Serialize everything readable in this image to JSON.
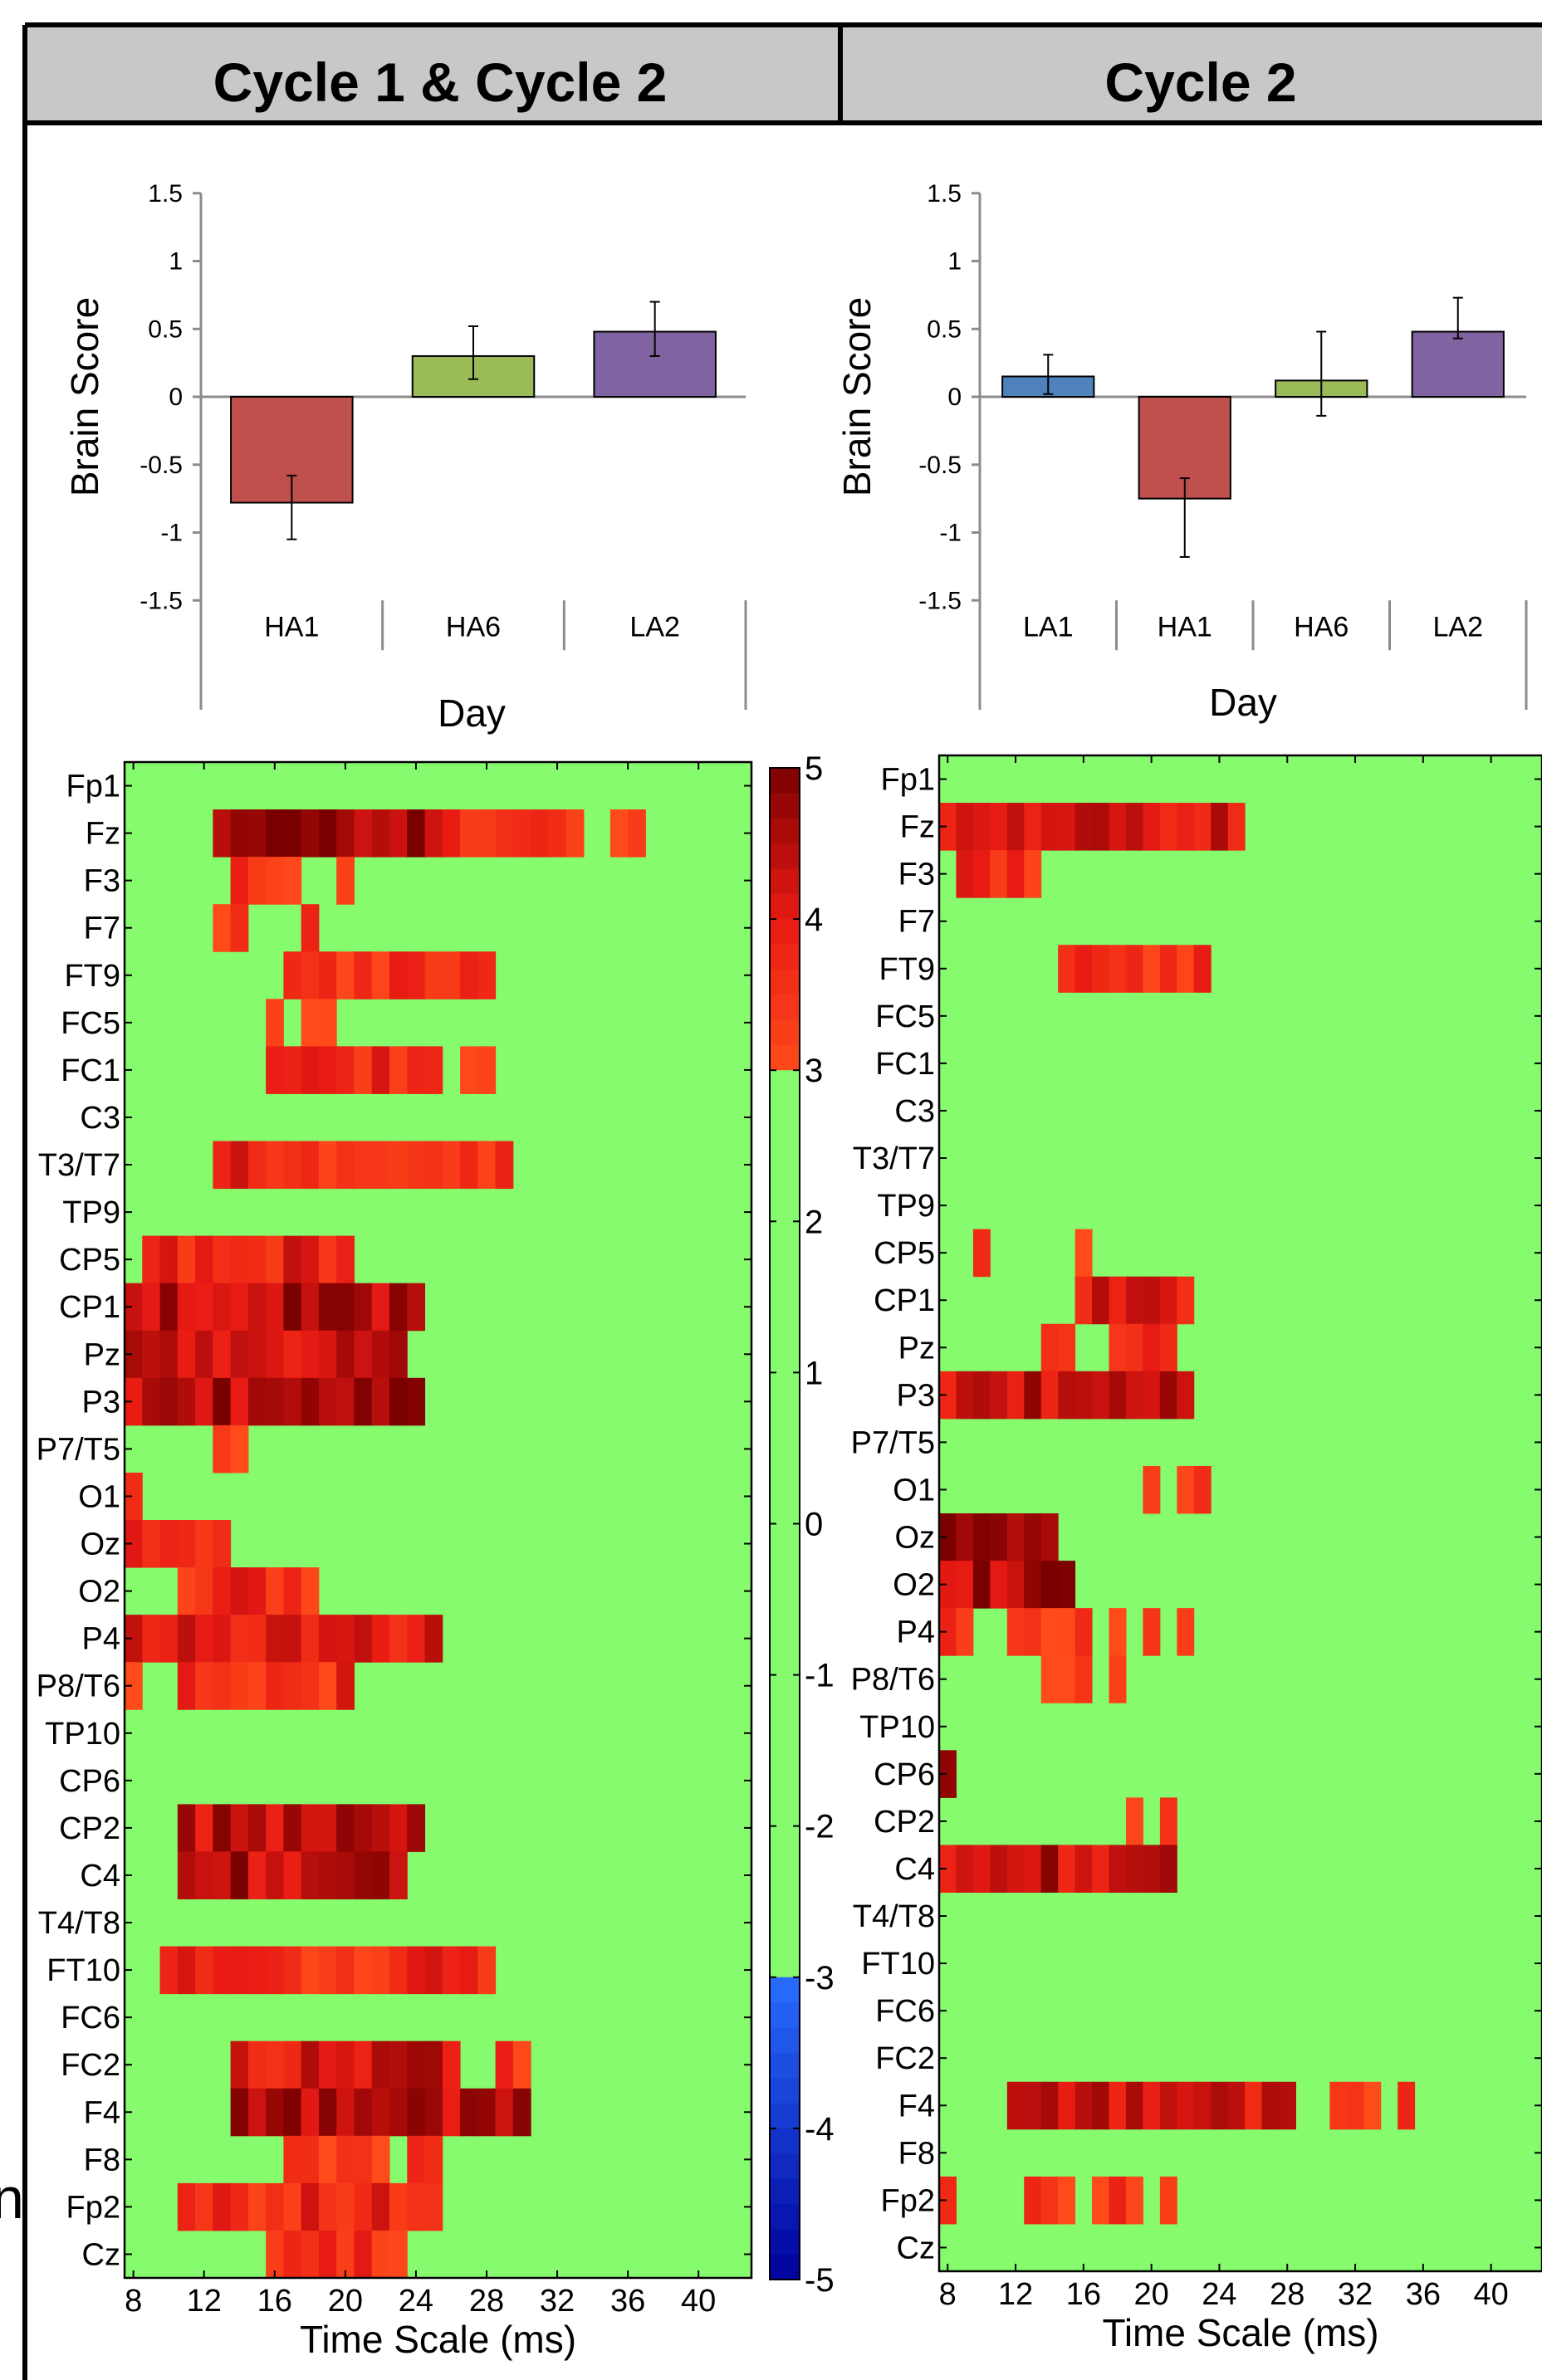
{
  "panels": [
    {
      "title": "Cycle 1 & Cycle 2"
    },
    {
      "title": "Cycle 2"
    }
  ],
  "edge_text": "n",
  "chart_data": [
    {
      "type": "bar",
      "panel": "Cycle 1 & Cycle 2",
      "xlabel": "Day",
      "ylabel": "Brain Score",
      "categories": [
        "HA1",
        "HA6",
        "LA2"
      ],
      "values": [
        -0.78,
        0.3,
        0.48
      ],
      "error_low": [
        -1.05,
        0.13,
        0.3
      ],
      "error_high": [
        -0.58,
        0.52,
        0.7
      ],
      "colors": [
        "#c0504d",
        "#9bbb59",
        "#8064a2"
      ],
      "ylim": [
        -1.5,
        1.5
      ],
      "yticks": [
        "1.5",
        "1",
        "0.5",
        "0",
        "-0.5",
        "-1",
        "-1.5"
      ]
    },
    {
      "type": "bar",
      "panel": "Cycle 2",
      "xlabel": "Day",
      "ylabel": "Brain Score",
      "categories": [
        "LA1",
        "HA1",
        "HA6",
        "LA2"
      ],
      "values": [
        0.15,
        -0.75,
        0.12,
        0.48
      ],
      "error_low": [
        0.02,
        -1.18,
        -0.14,
        0.43
      ],
      "error_high": [
        0.31,
        -0.6,
        0.48,
        0.73
      ],
      "colors": [
        "#4f81bd",
        "#c0504d",
        "#9bbb59",
        "#8064a2"
      ],
      "ylim": [
        -1.5,
        1.5
      ],
      "yticks": [
        "1.5",
        "1",
        "0.5",
        "0",
        "-0.5",
        "-1",
        "-1.5"
      ]
    },
    {
      "type": "heatmap",
      "panel": "Cycle 1 & Cycle 2",
      "xlabel": "Time Scale (ms)",
      "xticks": [
        "8",
        "12",
        "16",
        "20",
        "24",
        "28",
        "32",
        "36",
        "40"
      ],
      "xlim": [
        7.5,
        43
      ],
      "channels": [
        "Fp1",
        "Fz",
        "F3",
        "F7",
        "FT9",
        "FC5",
        "FC1",
        "C3",
        "T3/T7",
        "TP9",
        "CP5",
        "CP1",
        "Pz",
        "P3",
        "P7/T5",
        "O1",
        "Oz",
        "O2",
        "P4",
        "P8/T6",
        "TP10",
        "CP6",
        "CP2",
        "C4",
        "T4/T8",
        "FT10",
        "FC6",
        "FC2",
        "F4",
        "F8",
        "Fp2",
        "Cz"
      ],
      "segments": {
        "Fz": [
          [
            12.5,
            25.5,
            4.7
          ],
          [
            25.5,
            29.5,
            3.7
          ],
          [
            29.5,
            33.5,
            3.5
          ],
          [
            35,
            37,
            3.3
          ]
        ],
        "F3": [
          [
            13.5,
            17.5,
            3.5
          ],
          [
            19.5,
            20.5,
            3.3
          ]
        ],
        "F7": [
          [
            12.5,
            14.5,
            3.3
          ],
          [
            17.5,
            18.5,
            3.3
          ]
        ],
        "FT9": [
          [
            16.5,
            28.5,
            3.6
          ]
        ],
        "FC5": [
          [
            15.5,
            16.5,
            3.3
          ],
          [
            17.5,
            19.5,
            3.3
          ]
        ],
        "FC1": [
          [
            15.5,
            25.5,
            3.6
          ],
          [
            26.5,
            28.5,
            3.3
          ]
        ],
        "T3/T7": [
          [
            12.5,
            29.5,
            3.7
          ]
        ],
        "CP5": [
          [
            8.5,
            20.5,
            3.8
          ]
        ],
        "CP1": [
          [
            7.5,
            24.5,
            4.5
          ]
        ],
        "Pz": [
          [
            7.5,
            23.5,
            4.2
          ]
        ],
        "P3": [
          [
            7.5,
            24.5,
            4.5
          ]
        ],
        "P7/T5": [
          [
            12.5,
            14.5,
            3.3
          ]
        ],
        "O1": [
          [
            7.5,
            8.5,
            3.3
          ]
        ],
        "Oz": [
          [
            7.5,
            13.5,
            3.6
          ]
        ],
        "O2": [
          [
            10.5,
            18.5,
            3.6
          ]
        ],
        "P4": [
          [
            7.5,
            25.5,
            4.0
          ]
        ],
        "P8/T6": [
          [
            7.5,
            8.5,
            3.3
          ],
          [
            10.5,
            20.5,
            3.6
          ]
        ],
        "CP2": [
          [
            10.5,
            24.5,
            4.4
          ]
        ],
        "C4": [
          [
            10.5,
            23.5,
            4.4
          ]
        ],
        "FT10": [
          [
            9.5,
            28.5,
            3.6
          ]
        ],
        "FC2": [
          [
            13.5,
            26.5,
            4.1
          ],
          [
            28.5,
            30.5,
            3.4
          ]
        ],
        "F4": [
          [
            13.5,
            30.5,
            4.4
          ]
        ],
        "F8": [
          [
            16.5,
            22.5,
            3.5
          ],
          [
            23.5,
            25.5,
            3.3
          ]
        ],
        "Fp2": [
          [
            10.5,
            25.5,
            3.7
          ]
        ],
        "Cz": [
          [
            15.5,
            23.5,
            3.5
          ]
        ]
      }
    },
    {
      "type": "heatmap",
      "panel": "Cycle 2",
      "xlabel": "Time Scale (ms)",
      "xticks": [
        "8",
        "12",
        "16",
        "20",
        "24",
        "28",
        "32",
        "36",
        "40"
      ],
      "xlim": [
        7.5,
        43
      ],
      "channels": [
        "Fp1",
        "Fz",
        "F3",
        "F7",
        "FT9",
        "FC5",
        "FC1",
        "C3",
        "T3/T7",
        "TP9",
        "CP5",
        "CP1",
        "Pz",
        "P3",
        "P7/T5",
        "O1",
        "Oz",
        "O2",
        "P4",
        "P8/T6",
        "TP10",
        "CP6",
        "CP2",
        "C4",
        "T4/T8",
        "FT10",
        "FC6",
        "FC2",
        "F4",
        "F8",
        "Fp2",
        "Cz"
      ],
      "segments": {
        "Fz": [
          [
            7.5,
            25.5,
            4.1
          ]
        ],
        "F3": [
          [
            8.5,
            13.5,
            3.6
          ]
        ],
        "FT9": [
          [
            14.5,
            23.5,
            3.6
          ]
        ],
        "CP5": [
          [
            9.5,
            10.5,
            3.3
          ],
          [
            15.5,
            16.5,
            3.3
          ]
        ],
        "CP1": [
          [
            15.5,
            22.5,
            4.0
          ]
        ],
        "Pz": [
          [
            13.5,
            15.5,
            3.4
          ],
          [
            17.5,
            21.5,
            3.6
          ]
        ],
        "P3": [
          [
            7.5,
            22.5,
            4.3
          ]
        ],
        "O1": [
          [
            19.5,
            20.5,
            3.3
          ],
          [
            21.5,
            23.5,
            3.3
          ]
        ],
        "Oz": [
          [
            7.5,
            14.5,
            4.7
          ]
        ],
        "O2": [
          [
            7.5,
            15.5,
            4.5
          ]
        ],
        "P4": [
          [
            7.5,
            9.5,
            3.5
          ],
          [
            11.5,
            16.5,
            3.4
          ],
          [
            17.5,
            18.5,
            3.3
          ],
          [
            19.5,
            20.5,
            3.3
          ],
          [
            21.5,
            22.5,
            3.3
          ]
        ],
        "P8/T6": [
          [
            13.5,
            16.5,
            3.3
          ],
          [
            17.5,
            18.5,
            3.3
          ]
        ],
        "CP6": [
          [
            7.5,
            8.5,
            4.8
          ]
        ],
        "CP2": [
          [
            18.5,
            19.5,
            3.3
          ],
          [
            20.5,
            21.5,
            3.3
          ]
        ],
        "C4": [
          [
            7.5,
            21.5,
            4.3
          ]
        ],
        "F4": [
          [
            11.5,
            28.5,
            4.1
          ],
          [
            30.5,
            33.5,
            3.4
          ],
          [
            34.5,
            35.5,
            3.3
          ]
        ],
        "Fp2": [
          [
            7.5,
            8.5,
            3.3
          ],
          [
            12.5,
            15.5,
            3.4
          ],
          [
            16.5,
            19.5,
            3.3
          ],
          [
            20.5,
            21.5,
            3.3
          ]
        ]
      }
    },
    {
      "type": "colorbar",
      "range": [
        -5,
        5
      ],
      "ticks": [
        "5",
        "4",
        "3",
        "2",
        "1",
        "0",
        "-1",
        "-2",
        "-3",
        "-4",
        "-5"
      ]
    }
  ]
}
